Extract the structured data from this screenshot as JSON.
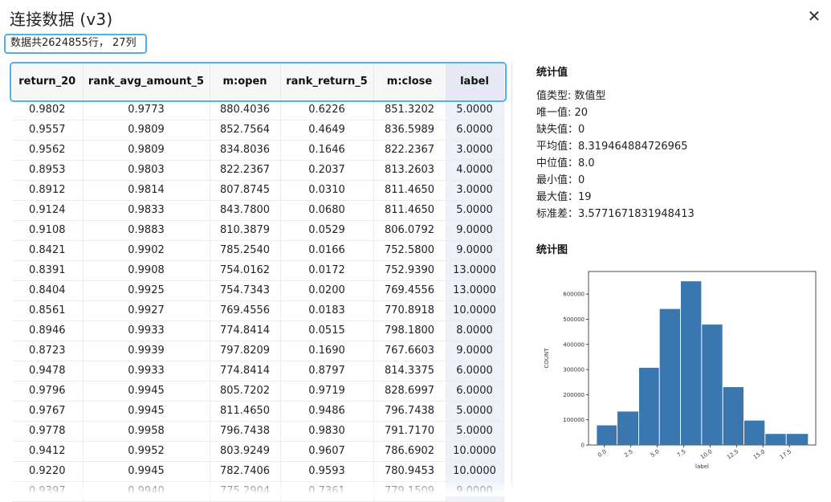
{
  "dialog": {
    "title": "连接数据 (v3)",
    "close_label": "✕",
    "summary": "数据共2624855行， 27列"
  },
  "table": {
    "columns": [
      "return_20",
      "rank_avg_amount_5",
      "m:open",
      "rank_return_5",
      "m:close",
      "label"
    ],
    "rows": [
      [
        "0.9802",
        "0.9773",
        "880.4036",
        "0.6226",
        "851.3202",
        "5.0000"
      ],
      [
        "0.9557",
        "0.9809",
        "852.7564",
        "0.4649",
        "836.5989",
        "6.0000"
      ],
      [
        "0.9562",
        "0.9809",
        "834.8036",
        "0.1646",
        "822.2367",
        "3.0000"
      ],
      [
        "0.8953",
        "0.9803",
        "822.2367",
        "0.2037",
        "813.2603",
        "4.0000"
      ],
      [
        "0.8912",
        "0.9814",
        "807.8745",
        "0.0310",
        "811.4650",
        "3.0000"
      ],
      [
        "0.9124",
        "0.9833",
        "843.7800",
        "0.0680",
        "811.4650",
        "5.0000"
      ],
      [
        "0.9108",
        "0.9883",
        "810.3879",
        "0.0529",
        "806.0792",
        "9.0000"
      ],
      [
        "0.8421",
        "0.9902",
        "785.2540",
        "0.0166",
        "752.5800",
        "9.0000"
      ],
      [
        "0.8391",
        "0.9908",
        "754.0162",
        "0.0172",
        "752.9390",
        "13.0000"
      ],
      [
        "0.8404",
        "0.9925",
        "754.7343",
        "0.0200",
        "769.4556",
        "13.0000"
      ],
      [
        "0.8561",
        "0.9927",
        "769.4556",
        "0.0183",
        "770.8918",
        "10.0000"
      ],
      [
        "0.8946",
        "0.9933",
        "774.8414",
        "0.0515",
        "798.1800",
        "8.0000"
      ],
      [
        "0.8723",
        "0.9939",
        "797.8209",
        "0.1690",
        "767.6603",
        "9.0000"
      ],
      [
        "0.9478",
        "0.9933",
        "774.8414",
        "0.8797",
        "814.3375",
        "6.0000"
      ],
      [
        "0.9796",
        "0.9945",
        "805.7202",
        "0.9719",
        "828.6997",
        "6.0000"
      ],
      [
        "0.9767",
        "0.9945",
        "811.4650",
        "0.9486",
        "796.7438",
        "5.0000"
      ],
      [
        "0.9778",
        "0.9958",
        "796.7438",
        "0.9830",
        "791.7170",
        "5.0000"
      ],
      [
        "0.9412",
        "0.9952",
        "803.9249",
        "0.9607",
        "786.6902",
        "10.0000"
      ],
      [
        "0.9220",
        "0.9945",
        "782.7406",
        "0.9593",
        "780.9453",
        "10.0000"
      ],
      [
        "0.9397",
        "0.9940",
        "775.2904",
        "0.7361",
        "779.1509",
        "9.0000"
      ]
    ]
  },
  "stats": {
    "title": "统计值",
    "lines": [
      "值类型: 数值型",
      "唯一值: 20",
      "缺失值：0",
      "平均值：8.319464884726965",
      "中位值：8.0",
      "最小值：0",
      "最大值：19",
      "标准差：3.5771671831948413"
    ]
  },
  "chart_section": {
    "title": "统计图"
  },
  "chart_data": {
    "type": "bar",
    "title": "",
    "xlabel": "label",
    "ylabel": "COUNT",
    "bins": [
      [
        -0.75,
        1.2
      ],
      [
        1.2,
        3.25
      ],
      [
        3.25,
        5.2
      ],
      [
        5.2,
        7.2
      ],
      [
        7.2,
        9.2
      ],
      [
        9.2,
        11.2
      ],
      [
        11.2,
        13.2
      ],
      [
        13.2,
        15.2
      ],
      [
        15.2,
        17.2
      ],
      [
        17.2,
        19.3
      ]
    ],
    "values": [
      78000,
      133000,
      307000,
      541000,
      651000,
      479000,
      230000,
      97000,
      44000,
      44000
    ],
    "xlim": [
      -1.5,
      20.0
    ],
    "ylim": [
      0,
      690000
    ],
    "x_ticks": [
      0.0,
      2.5,
      5.0,
      7.5,
      10.0,
      12.5,
      15.0,
      17.5
    ],
    "x_tick_labels": [
      "0.0",
      "2.5",
      "5.0",
      "7.5",
      "10.0",
      "12.5",
      "15.0",
      "17.5"
    ],
    "y_ticks": [
      0,
      100000,
      200000,
      300000,
      400000,
      500000,
      600000
    ],
    "y_tick_labels": [
      "0",
      "100000",
      "200000",
      "300000",
      "400000",
      "500000",
      "600000"
    ],
    "bar_color": "#3a76b0",
    "grid": false
  }
}
